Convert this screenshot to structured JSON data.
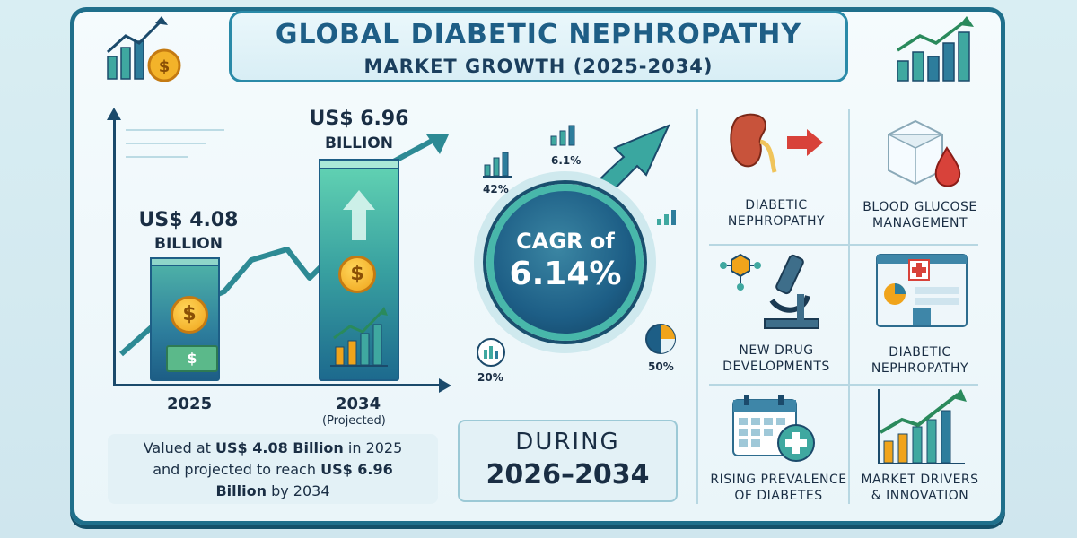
{
  "title": {
    "line1": "GLOBAL DIABETIC NEPHROPATHY",
    "line2": "MARKET  GROWTH (2025-2034)"
  },
  "left_panel": {
    "bar_2025": {
      "value_label": "US$ 4.08",
      "unit_label": "BILLION",
      "year": "2025"
    },
    "bar_2034": {
      "value_label": "US$ 6.96",
      "unit_label": "BILLION",
      "year": "2034",
      "sub": "(Projected)"
    },
    "note": {
      "line1_pre": "Valued at ",
      "line1_bold": "US$ 4.08 Billion",
      "line1_post": " in 2025",
      "line2_pre": "and projected to reach ",
      "line2_bold": "US$ 6.96",
      "line3_bold": "Billion",
      "line3_post": " by 2034"
    }
  },
  "center_panel": {
    "cagr_line1": "CAGR of",
    "cagr_line2": "6.14%",
    "pct_42": "42%",
    "pct_61": "6.1%",
    "pct_20": "20%",
    "pct_50": "50%",
    "during_line1": "DURING",
    "during_line2": "2026–2034"
  },
  "right_panel": {
    "items": [
      {
        "caption": "DIABETIC\nNEPHROPATHY",
        "icon": "kidney-icon"
      },
      {
        "caption": "BLOOD GLUCOSE\nMANAGEMENT",
        "icon": "blood-glucose-icon"
      },
      {
        "caption": "NEW DRUG\nDEVELOPMENTS",
        "icon": "microscope-icon"
      },
      {
        "caption": "DIABETIC\nNEPHROPATHY",
        "icon": "hospital-icon"
      },
      {
        "caption": "RISING PREVALENCE\nOF DIABETES",
        "icon": "calendar-icon"
      },
      {
        "caption": "MARKET DRIVERS\n& INNOVATION",
        "icon": "growth-chart-icon"
      }
    ]
  },
  "colors": {
    "frame": "#1f6f8b",
    "title": "#1e5e86",
    "teal": "#48b7aa",
    "navy": "#1d5e86",
    "coin": "#f0a41b",
    "red": "#d8423a"
  }
}
